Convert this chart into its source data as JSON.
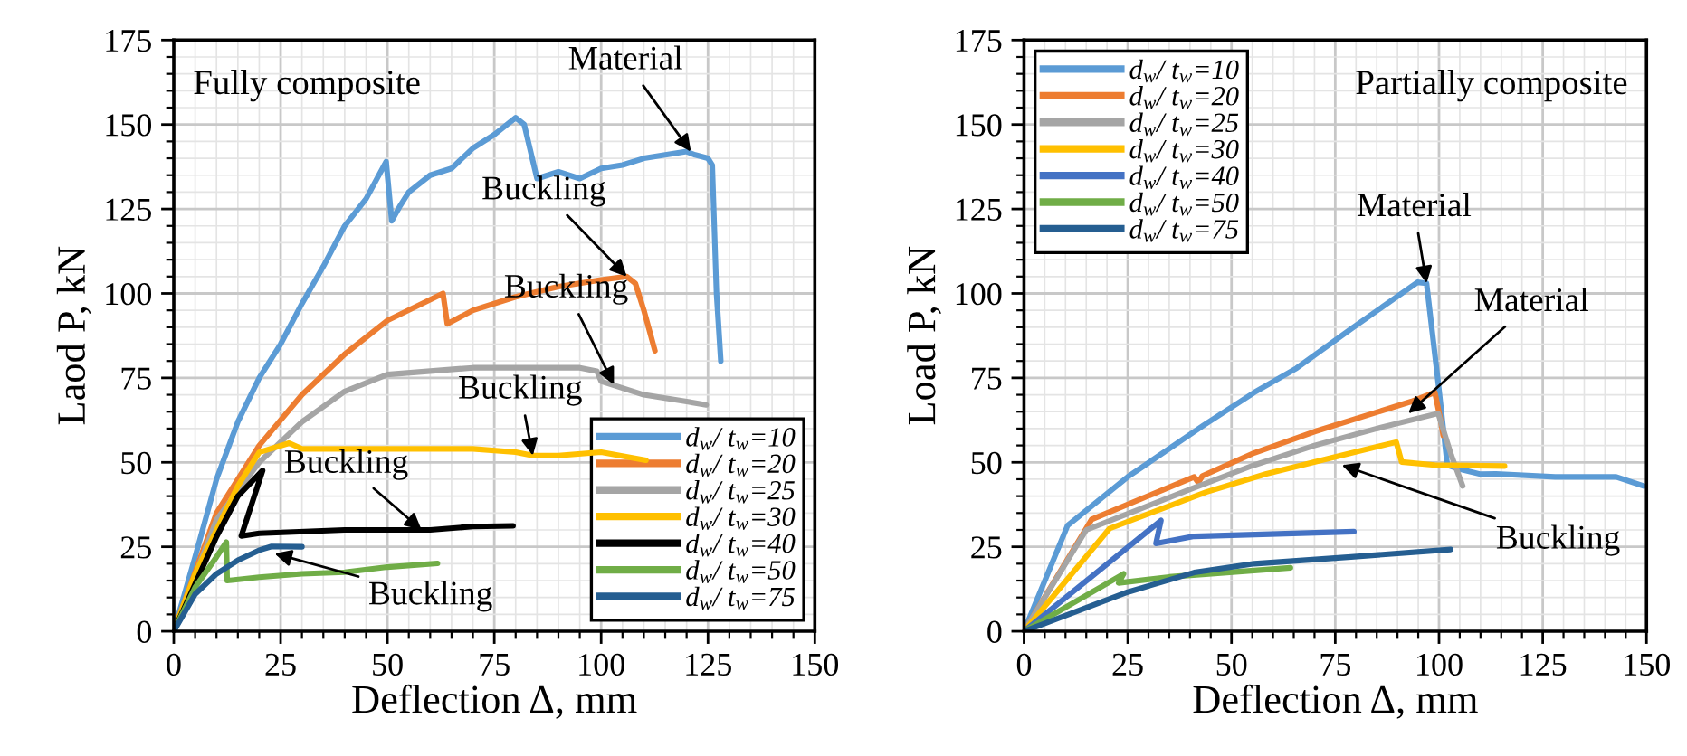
{
  "chart_data": [
    {
      "type": "line",
      "title": "Fully composite",
      "xlabel": "Deflection Δ, mm",
      "ylabel": "Laod P, kN",
      "xlim": [
        0,
        150
      ],
      "ylim": [
        0,
        175
      ],
      "xticks": [
        0,
        25,
        50,
        75,
        100,
        125,
        150
      ],
      "yticks": [
        0,
        25,
        50,
        75,
        100,
        125,
        150,
        175
      ],
      "grid": true,
      "legend": "bottom right",
      "line_style": "solid",
      "marker": "none",
      "annotations": [
        {
          "text": "Material",
          "x": 121,
          "y": 142
        },
        {
          "text": "Buckling",
          "x": 106,
          "y": 105
        },
        {
          "text": "Buckling",
          "x": 103,
          "y": 73
        },
        {
          "text": "Buckling",
          "x": 84,
          "y": 52
        },
        {
          "text": "Buckling",
          "x": 58,
          "y": 30
        },
        {
          "text": "Buckling",
          "x": 23.6,
          "y": 23
        }
      ],
      "series": [
        {
          "name": "d$_{w}$/ t$_{w}$=10",
          "color": "#5b9bd5",
          "x": [
            0,
            5,
            10,
            15,
            20,
            25,
            30,
            35,
            40,
            45,
            49.7,
            51,
            53,
            55,
            60,
            65,
            70,
            75,
            78,
            80,
            82,
            85,
            90,
            95,
            100,
            105,
            110,
            115,
            120,
            122,
            125,
            126,
            127,
            128
          ],
          "values": [
            0,
            22,
            45,
            62,
            75,
            85,
            97,
            108,
            120,
            128,
            139,
            121.5,
            126,
            130,
            135,
            137,
            143,
            147,
            150,
            152,
            150,
            134,
            136,
            134,
            137,
            138,
            140,
            141,
            142,
            141,
            140,
            138,
            100,
            80
          ]
        },
        {
          "name": "d$_{w}$/ t$_{w}$=20",
          "color": "#ed7d31",
          "x": [
            0,
            10,
            20,
            30,
            40,
            50,
            63,
            64,
            70,
            80,
            90,
            100,
            106,
            108,
            110,
            112.6
          ],
          "values": [
            0,
            35,
            55,
            70,
            82,
            92,
            100,
            91,
            95,
            99,
            102,
            104,
            105,
            103,
            95,
            83
          ]
        },
        {
          "name": "d$_{w}$/ t$_{w}$=25",
          "color": "#a5a5a5",
          "x": [
            0,
            10,
            20,
            30,
            40,
            50,
            60,
            70,
            80,
            95,
            99,
            100,
            105,
            110,
            120,
            124.6
          ],
          "values": [
            0,
            33,
            50,
            62,
            71,
            76,
            77,
            78,
            78,
            78,
            77,
            74,
            72,
            70,
            68,
            67
          ]
        },
        {
          "name": "d$_{w}$/ t$_{w}$=30",
          "color": "#ffc000",
          "x": [
            0,
            5,
            10,
            15,
            20,
            27,
            30,
            50,
            70,
            80,
            84,
            90,
            100,
            110.5
          ],
          "values": [
            0,
            17,
            30,
            43,
            53,
            55.7,
            54,
            54,
            54,
            53,
            52,
            52,
            53,
            50.6
          ]
        },
        {
          "name": "d$_{w}$/ t$_{w}$=40",
          "color": "#000000",
          "x": [
            0,
            5,
            10,
            15,
            20.8,
            15.8,
            20,
            40,
            60,
            70,
            79.4
          ],
          "values": [
            0,
            14,
            28,
            40,
            47.6,
            28.2,
            29,
            30,
            30,
            31,
            31.2
          ]
        },
        {
          "name": "d$_{w}$/ t$_{w}$=50",
          "color": "#70ad47",
          "x": [
            0,
            5,
            10,
            12.3,
            12.5,
            20,
            30,
            40,
            50,
            61.7
          ],
          "values": [
            0,
            13,
            22,
            26.4,
            15,
            16,
            17,
            17.5,
            19,
            20.1
          ]
        },
        {
          "name": "d$_{w}$/ t$_{w}$=75",
          "color": "#255e91",
          "x": [
            0,
            5,
            10,
            15,
            20,
            22.9,
            30
          ],
          "values": [
            0,
            11,
            17,
            21,
            24,
            25.1,
            25
          ]
        }
      ]
    },
    {
      "type": "line",
      "title": "Partially composite",
      "xlabel": "Deflection Δ, mm",
      "ylabel": "Load P, kN",
      "xlim": [
        0,
        150
      ],
      "ylim": [
        0,
        175
      ],
      "xticks": [
        0,
        25,
        50,
        75,
        100,
        125,
        150
      ],
      "yticks": [
        0,
        25,
        50,
        75,
        100,
        125,
        150,
        175
      ],
      "grid": true,
      "legend": "top left",
      "line_style": "solid",
      "marker": "none",
      "annotations": [
        {
          "text": "Material",
          "x": 97,
          "y": 103
        },
        {
          "text": "Material",
          "x": 92.6,
          "y": 64.5
        },
        {
          "text": "Buckling",
          "x": 76.6,
          "y": 49.2
        }
      ],
      "series": [
        {
          "name": "d$_{w}$/ t$_{w}$=10",
          "color": "#5b9bd5",
          "x": [
            0,
            10.5,
            25,
            43.2,
            55.5,
            65.7,
            78.8,
            94.8,
            97,
            99.9,
            102,
            105,
            110,
            113.7,
            128,
            142.7,
            149.3
          ],
          "values": [
            0,
            31.3,
            45.7,
            60.9,
            70.7,
            77.9,
            89.5,
            103.3,
            103,
            72.5,
            49.2,
            48,
            46.5,
            46.6,
            45.7,
            45.7,
            43
          ]
        },
        {
          "name": "d$_{w}$/ t$_{w}$=20",
          "color": "#ed7d31",
          "x": [
            0,
            16.3,
            41,
            42,
            43,
            55.5,
            70,
            93.3,
            99,
            100.5,
            101
          ],
          "values": [
            0,
            33.1,
            45.7,
            44,
            46,
            52.8,
            59.1,
            68,
            70.7,
            61.8,
            58
          ]
        },
        {
          "name": "d$_{w}$/ t$_{w}$=25",
          "color": "#a5a5a5",
          "x": [
            0,
            15,
            40,
            55,
            70,
            85,
            99.8,
            103,
            105.7
          ],
          "values": [
            0,
            30,
            42,
            49,
            55,
            60,
            64.5,
            52,
            43
          ]
        },
        {
          "name": "d$_{w}$/ t$_{w}$=30",
          "color": "#ffc000",
          "x": [
            0,
            20.6,
            43.9,
            58.4,
            73,
            89.7,
            91,
            99,
            115.8
          ],
          "values": [
            0,
            30.4,
            41.2,
            46.6,
            51,
            56,
            50.1,
            49.2,
            48.9
          ]
        },
        {
          "name": "d$_{w}$/ t$_{w}$=40",
          "color": "#4472c4",
          "x": [
            0,
            33,
            31.8,
            41,
            79.5
          ],
          "values": [
            0,
            32.8,
            26,
            28.1,
            29.5
          ]
        },
        {
          "name": "d$_{w}$/ t$_{w}$=50",
          "color": "#70ad47",
          "x": [
            0,
            24,
            22.8,
            35,
            64.2
          ],
          "values": [
            0,
            17,
            14.3,
            16.1,
            18.8
          ]
        },
        {
          "name": "d$_{w}$/ t$_{w}$=75",
          "color": "#255e91",
          "x": [
            0,
            25,
            41,
            55.5,
            78.8,
            102.8
          ],
          "values": [
            0,
            11.6,
            17.4,
            20,
            22,
            24.2
          ]
        }
      ]
    }
  ]
}
